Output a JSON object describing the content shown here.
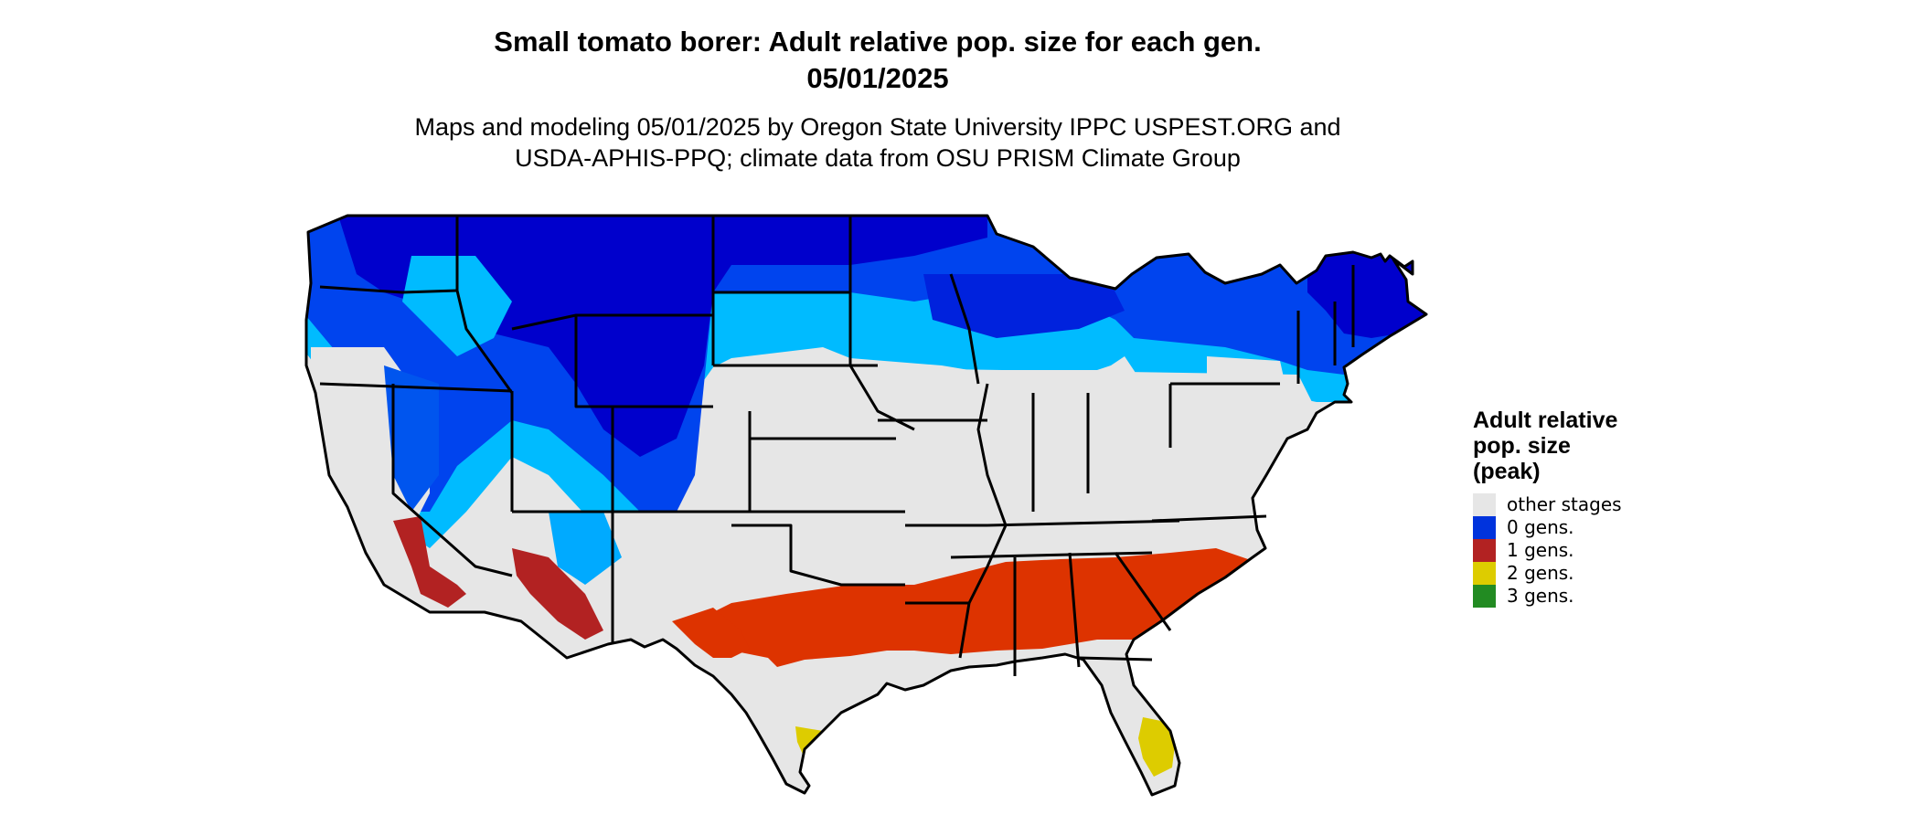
{
  "title_line1": "Small tomato borer: Adult relative pop. size for each gen.",
  "title_line2": "05/01/2025",
  "subtitle_line1": "Maps and modeling 05/01/2025 by Oregon State University IPPC USPEST.ORG and",
  "subtitle_line2": "USDA-APHIS-PPQ; climate data from OSU PRISM Climate Group",
  "legend": {
    "title_lines": [
      "Adult relative",
      "pop. size",
      "(peak)"
    ],
    "items": [
      {
        "label": "other stages",
        "color": "#e6e6e6"
      },
      {
        "label": "0 gens.",
        "color": "#0033dd"
      },
      {
        "label": "1 gens.",
        "color": "#b22222"
      },
      {
        "label": "2 gens.",
        "color": "#ddcc00"
      },
      {
        "label": "3 gens.",
        "color": "#228b22"
      }
    ]
  },
  "map_colors": {
    "background_land": "#e6e6e6",
    "zero_gens_dark": "#0000cc",
    "zero_gens_mid": "#0044ee",
    "zero_gens_light": "#00bbff",
    "one_gen": "#dd3300",
    "one_gen_dark": "#b22222",
    "two_gens": "#ddcc00",
    "border": "#000000"
  }
}
